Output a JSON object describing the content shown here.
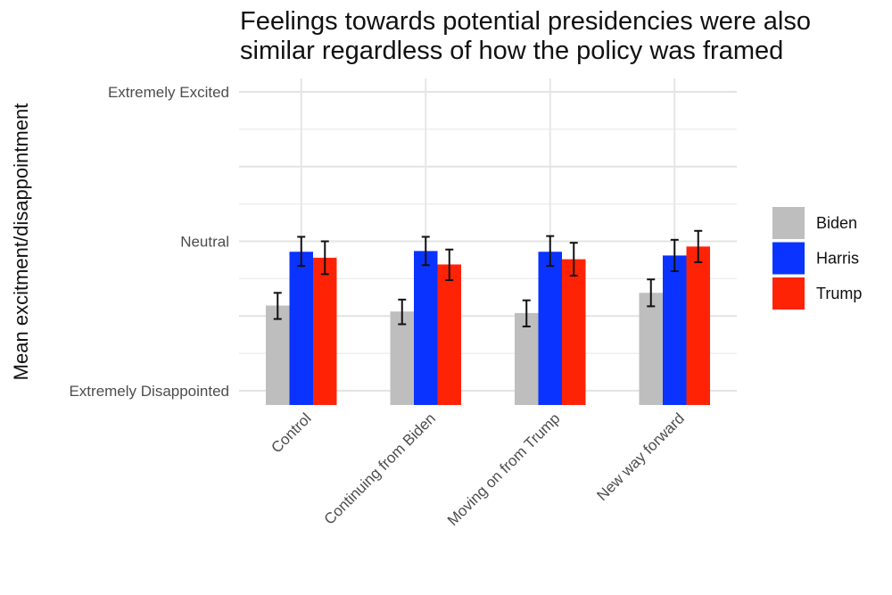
{
  "chart_data": {
    "type": "bar",
    "title": "Feelings towards potential presidencies were also similar regardless of how the policy was framed",
    "title_lines": [
      "Feelings towards potential presidencies were also",
      "similar regardless of how the policy was framed"
    ],
    "xlabel": "",
    "ylabel": "Mean excitment/disappointment",
    "ylim": [
      0,
      4
    ],
    "y_tick_labels": [
      {
        "value": 0,
        "label": "Extremely Disappointed"
      },
      {
        "value": 2,
        "label": "Neutral"
      },
      {
        "value": 4,
        "label": "Extremely Excited"
      }
    ],
    "categories": [
      "Control",
      "Continuing from Biden",
      "Moving on from Trump",
      "New way forward"
    ],
    "series": [
      {
        "name": "Biden",
        "color": "#bebebe",
        "values": [
          1.14,
          1.06,
          1.04,
          1.31
        ],
        "err_low": [
          0.96,
          0.89,
          0.86,
          1.13
        ],
        "err_high": [
          1.31,
          1.22,
          1.21,
          1.49
        ]
      },
      {
        "name": "Harris",
        "color": "#0a33ff",
        "values": [
          1.86,
          1.87,
          1.86,
          1.81
        ],
        "err_low": [
          1.67,
          1.68,
          1.67,
          1.6
        ],
        "err_high": [
          2.06,
          2.06,
          2.07,
          2.02
        ]
      },
      {
        "name": "Trump",
        "color": "#ff2305",
        "values": [
          1.78,
          1.69,
          1.76,
          1.93
        ],
        "err_low": [
          1.56,
          1.48,
          1.54,
          1.72
        ],
        "err_high": [
          2.0,
          1.89,
          1.98,
          2.14
        ]
      }
    ],
    "grid": true,
    "legend_position": "right"
  }
}
